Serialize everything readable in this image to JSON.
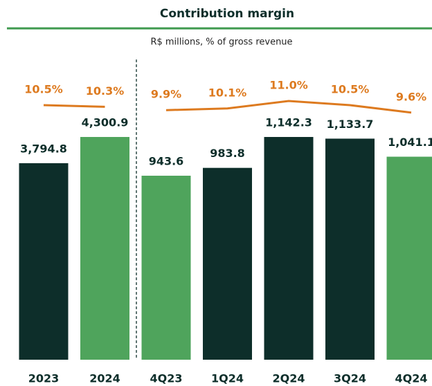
{
  "title": "Contribution margin",
  "subtitle": "R$ millions, % of gross revenue",
  "chart_data": [
    {
      "type": "bar",
      "categories": [
        "2023",
        "2024"
      ],
      "values": [
        3794.8,
        4300.9
      ],
      "value_labels": [
        "3,794.8",
        "4,300.9"
      ],
      "colors": [
        "#0d2e2a",
        "#4fa45c"
      ],
      "line": {
        "values": [
          10.5,
          10.3
        ],
        "value_labels": [
          "10.5%",
          "10.3%"
        ],
        "color": "#dd7a1f"
      }
    },
    {
      "type": "bar",
      "categories": [
        "4Q23",
        "1Q24",
        "2Q24",
        "3Q24",
        "4Q24"
      ],
      "values": [
        943.6,
        983.8,
        1142.3,
        1133.7,
        1041.1
      ],
      "value_labels": [
        "943.6",
        "983.8",
        "1,142.3",
        "1,133.7",
        "1,041.1"
      ],
      "colors": [
        "#4fa45c",
        "#0d2e2a",
        "#0d2e2a",
        "#0d2e2a",
        "#4fa45c"
      ],
      "line": {
        "values": [
          9.9,
          10.1,
          11.0,
          10.5,
          9.6
        ],
        "value_labels": [
          "9.9%",
          "10.1%",
          "11.0%",
          "10.5%",
          "9.6%"
        ],
        "color": "#dd7a1f"
      }
    }
  ]
}
